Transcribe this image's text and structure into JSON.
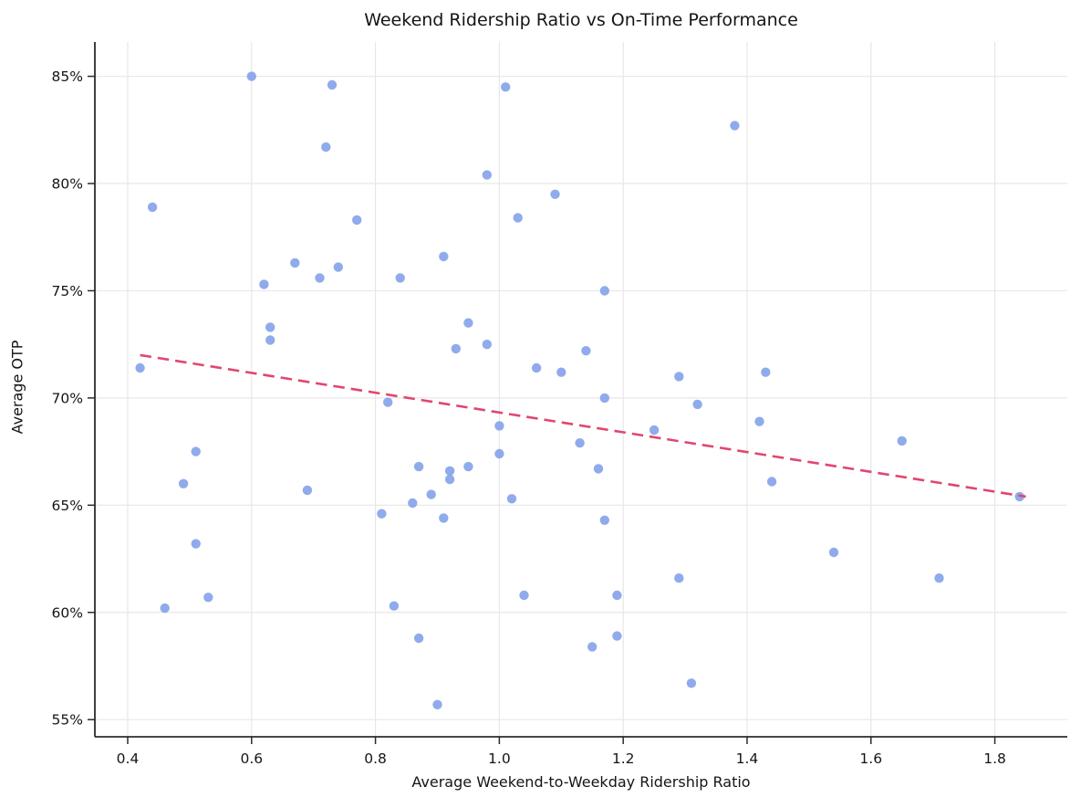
{
  "chart_data": {
    "type": "scatter",
    "title": "Weekend Ridership Ratio vs On-Time Performance",
    "xlabel": "Average Weekend-to-Weekday Ridership Ratio",
    "ylabel": "Average OTP",
    "xlim": [
      0.347,
      1.917
    ],
    "ylim": [
      54.2,
      86.6
    ],
    "x_ticks": [
      0.4,
      0.6,
      0.8,
      1.0,
      1.2,
      1.4,
      1.6,
      1.8
    ],
    "x_tick_labels": [
      "0.4",
      "0.6",
      "0.8",
      "1.0",
      "1.2",
      "1.4",
      "1.6",
      "1.8"
    ],
    "y_ticks": [
      55,
      60,
      65,
      70,
      75,
      80,
      85
    ],
    "y_tick_labels": [
      "55%",
      "60%",
      "65%",
      "70%",
      "75%",
      "80%",
      "85%"
    ],
    "grid": true,
    "legend_position": "none",
    "series": [
      {
        "name": "scatter-points",
        "points": [
          [
            0.42,
            71.4
          ],
          [
            0.44,
            78.9
          ],
          [
            0.46,
            60.2
          ],
          [
            0.49,
            66.0
          ],
          [
            0.51,
            67.5
          ],
          [
            0.51,
            63.2
          ],
          [
            0.53,
            60.7
          ],
          [
            0.6,
            85.0
          ],
          [
            0.62,
            75.3
          ],
          [
            0.63,
            73.3
          ],
          [
            0.63,
            72.7
          ],
          [
            0.67,
            76.3
          ],
          [
            0.69,
            65.7
          ],
          [
            0.71,
            75.6
          ],
          [
            0.72,
            81.7
          ],
          [
            0.73,
            84.6
          ],
          [
            0.74,
            76.1
          ],
          [
            0.77,
            78.3
          ],
          [
            0.81,
            64.6
          ],
          [
            0.82,
            69.8
          ],
          [
            0.83,
            60.3
          ],
          [
            0.84,
            75.6
          ],
          [
            0.86,
            65.1
          ],
          [
            0.87,
            66.8
          ],
          [
            0.87,
            58.8
          ],
          [
            0.89,
            65.5
          ],
          [
            0.9,
            55.7
          ],
          [
            0.91,
            76.6
          ],
          [
            0.91,
            64.4
          ],
          [
            0.92,
            66.6
          ],
          [
            0.92,
            66.2
          ],
          [
            0.93,
            72.3
          ],
          [
            0.95,
            73.5
          ],
          [
            0.95,
            66.8
          ],
          [
            0.98,
            80.4
          ],
          [
            0.98,
            72.5
          ],
          [
            1.0,
            68.7
          ],
          [
            1.0,
            67.4
          ],
          [
            1.01,
            84.5
          ],
          [
            1.02,
            65.3
          ],
          [
            1.03,
            78.4
          ],
          [
            1.04,
            60.8
          ],
          [
            1.06,
            71.4
          ],
          [
            1.09,
            79.5
          ],
          [
            1.1,
            71.2
          ],
          [
            1.13,
            67.9
          ],
          [
            1.14,
            72.2
          ],
          [
            1.15,
            58.4
          ],
          [
            1.16,
            66.7
          ],
          [
            1.17,
            75.0
          ],
          [
            1.17,
            70.0
          ],
          [
            1.17,
            64.3
          ],
          [
            1.19,
            60.8
          ],
          [
            1.19,
            58.9
          ],
          [
            1.25,
            68.5
          ],
          [
            1.29,
            71.0
          ],
          [
            1.29,
            61.6
          ],
          [
            1.31,
            56.7
          ],
          [
            1.32,
            69.7
          ],
          [
            1.38,
            82.7
          ],
          [
            1.42,
            68.9
          ],
          [
            1.43,
            71.2
          ],
          [
            1.44,
            66.1
          ],
          [
            1.54,
            62.8
          ],
          [
            1.65,
            68.0
          ],
          [
            1.71,
            61.6
          ],
          [
            1.84,
            65.4
          ]
        ]
      }
    ],
    "trend_line": {
      "style": "dashed",
      "points": [
        [
          0.42,
          72.0
        ],
        [
          1.85,
          65.4
        ]
      ]
    },
    "colors": {
      "marker": "#7d9ce8",
      "trend": "#e0476f",
      "grid": "#e7e7e7",
      "spine": "#2b2b2b",
      "text": "#151515"
    }
  }
}
